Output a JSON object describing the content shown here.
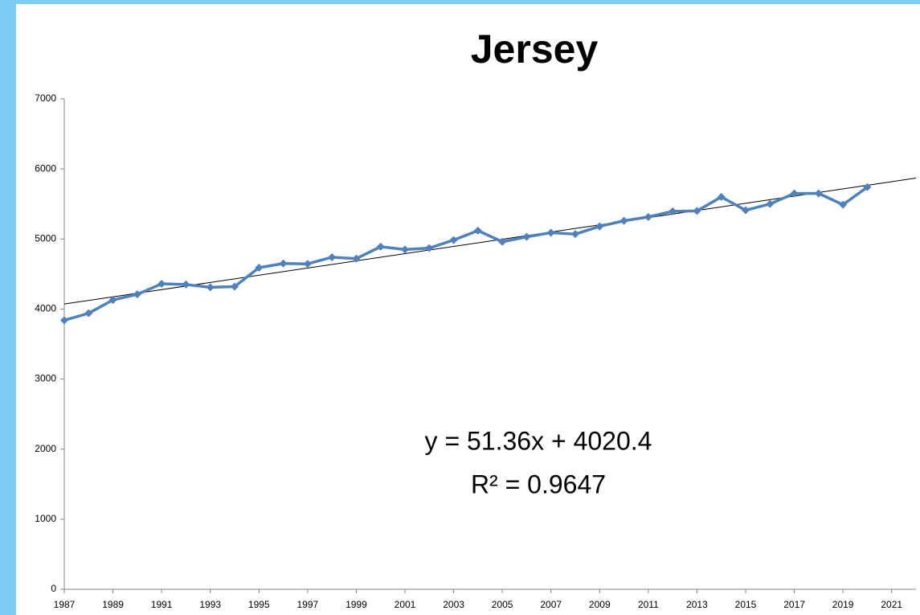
{
  "chart_data": {
    "type": "line",
    "title": "Jersey",
    "x": [
      1987,
      1988,
      1989,
      1990,
      1991,
      1992,
      1993,
      1994,
      1995,
      1996,
      1997,
      1998,
      1999,
      2000,
      2001,
      2002,
      2003,
      2004,
      2005,
      2006,
      2007,
      2008,
      2009,
      2010,
      2011,
      2012,
      2013,
      2014,
      2015,
      2016,
      2017,
      2018,
      2019,
      2020
    ],
    "series": [
      {
        "name": "Jersey",
        "color": "#4f81bd",
        "values": [
          3840,
          3940,
          4130,
          4210,
          4360,
          4350,
          4310,
          4320,
          4590,
          4650,
          4645,
          4740,
          4720,
          4890,
          4850,
          4870,
          4985,
          5120,
          4960,
          5030,
          5090,
          5070,
          5180,
          5260,
          5315,
          5395,
          5400,
          5600,
          5410,
          5500,
          5650,
          5650,
          5490,
          5740
        ]
      }
    ],
    "trendline": {
      "slope": 51.36,
      "intercept": 4020.4,
      "color": "#000000",
      "equation": "y = 51.36x + 4020.4",
      "r_squared": "R² = 0.9647"
    },
    "xlim": [
      1987,
      2022
    ],
    "xticks": [
      1987,
      1989,
      1991,
      1993,
      1995,
      1997,
      1999,
      2001,
      2003,
      2005,
      2007,
      2009,
      2011,
      2013,
      2015,
      2017,
      2019,
      2021
    ],
    "ylim": [
      0,
      7000
    ],
    "yticks": [
      0,
      1000,
      2000,
      3000,
      4000,
      5000,
      6000,
      7000
    ],
    "grid": false
  }
}
